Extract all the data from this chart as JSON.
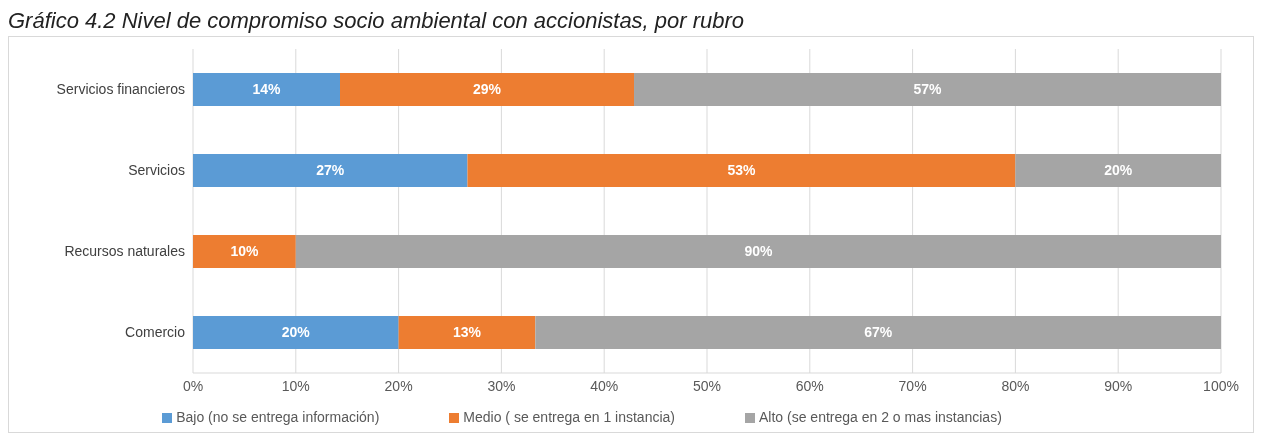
{
  "chart_data": {
    "type": "bar",
    "orientation": "horizontal",
    "stacked": true,
    "title": "Gráfico 4.2 Nivel de compromiso socio ambiental con accionistas, por rubro",
    "categories": [
      "Servicios financieros",
      "Servicios",
      "Recursos naturales",
      "Comercio"
    ],
    "series": [
      {
        "name": "Bajo (no se entrega información)",
        "color": "#5b9bd5",
        "values": [
          14.3,
          26.7,
          null,
          20
        ],
        "value_labels": [
          "14%",
          "27%",
          null,
          "20%"
        ]
      },
      {
        "name": "Medio ( se entrega en 1 instancia)",
        "color": "#ed7d31",
        "values": [
          28.6,
          53.3,
          10,
          13.3
        ],
        "value_labels": [
          "29%",
          "53%",
          "10%",
          "13%"
        ]
      },
      {
        "name": "Alto (se entrega en 2 o mas instancias)",
        "color": "#a5a5a5",
        "values": [
          57.1,
          20,
          90,
          66.7
        ],
        "value_labels": [
          "57%",
          "20%",
          "90%",
          "67%"
        ]
      }
    ],
    "xlim": [
      0,
      100
    ],
    "xticks": [
      {
        "value": 0,
        "label": "0%"
      },
      {
        "value": 10,
        "label": "10%"
      },
      {
        "value": 20,
        "label": "20%"
      },
      {
        "value": 30,
        "label": "30%"
      },
      {
        "value": 40,
        "label": "40%"
      },
      {
        "value": 50,
        "label": "50%"
      },
      {
        "value": 60,
        "label": "60%"
      },
      {
        "value": 70,
        "label": "70%"
      },
      {
        "value": 80,
        "label": "80%"
      },
      {
        "value": 90,
        "label": "90%"
      },
      {
        "value": 100,
        "label": "100%"
      }
    ],
    "grid": "x",
    "legend": "bottom"
  }
}
